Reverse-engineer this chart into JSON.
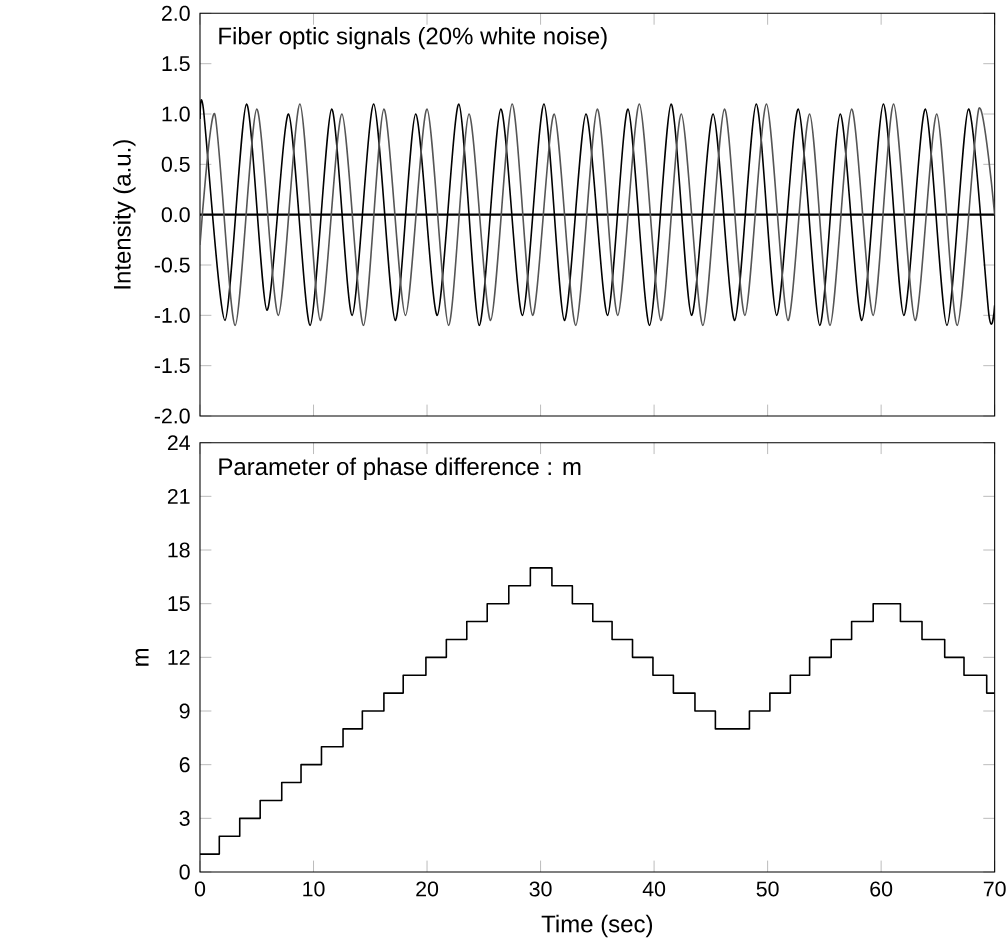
{
  "chart_data": [
    {
      "type": "line",
      "title": "Fiber optic signals (20% white noise)",
      "ylabel": "Intensity (a.u.)",
      "xlim": [
        0,
        70
      ],
      "xticks": [
        {
          "value": 0,
          "label": null
        },
        {
          "value": 10,
          "label": null
        },
        {
          "value": 20,
          "label": null
        },
        {
          "value": 30,
          "label": null
        },
        {
          "value": 40,
          "label": null
        },
        {
          "value": 50,
          "label": null
        },
        {
          "value": 60,
          "label": null
        },
        {
          "value": 70,
          "label": null
        }
      ],
      "ylim": [
        -2,
        2
      ],
      "yticks": [
        {
          "value": -2,
          "label": "-2.0"
        },
        {
          "value": -1.5,
          "label": "-1.5"
        },
        {
          "value": -1,
          "label": "-1.0"
        },
        {
          "value": -0.5,
          "label": "-0.5"
        },
        {
          "value": 0,
          "label": "0.0"
        },
        {
          "value": 0.5,
          "label": "0.5"
        },
        {
          "value": 1,
          "label": "1.0"
        },
        {
          "value": 1.5,
          "label": "1.5"
        },
        {
          "value": 2,
          "label": "2.0"
        }
      ],
      "tick_labels": "y",
      "marker": "none",
      "line_style": "solid",
      "ref_lines": [
        {
          "axis": "y",
          "value": 0,
          "color": "#000000"
        }
      ],
      "series": [
        {
          "color": "#000000",
          "x": [
            0,
            0.3,
            2.2,
            4.1,
            5.9,
            7.8,
            9.7,
            11.6,
            13.4,
            15.3,
            17.2,
            19.0,
            20.9,
            22.8,
            24.6,
            26.5,
            28.4,
            30.3,
            32.1,
            34.0,
            35.9,
            37.7,
            39.6,
            41.5,
            43.3,
            45.2,
            47.1,
            49.0,
            50.8,
            52.7,
            54.6,
            56.4,
            58.3,
            60.2,
            62.0,
            63.9,
            65.8,
            67.7,
            69.5,
            70
          ],
          "values": [
            0.95,
            1.05,
            -1.05,
            1.1,
            -0.95,
            1.0,
            -1.1,
            1.05,
            -1.0,
            1.1,
            -1.05,
            1.0,
            -1.0,
            1.1,
            -1.1,
            1.05,
            -1.0,
            1.1,
            -1.05,
            1.0,
            -1.0,
            1.05,
            -1.1,
            1.1,
            -1.0,
            1.0,
            -1.05,
            1.1,
            -1.0,
            1.05,
            -1.1,
            1.0,
            -1.05,
            1.1,
            -1.0,
            1.05,
            -1.1,
            1.05,
            -1.0,
            -0.9
          ]
        },
        {
          "color": "#555555",
          "x": [
            0,
            1.3,
            3.1,
            5.0,
            6.9,
            8.8,
            10.6,
            12.5,
            14.4,
            16.2,
            18.1,
            20.0,
            21.9,
            23.7,
            25.6,
            27.5,
            29.3,
            31.2,
            33.1,
            35.0,
            36.8,
            38.7,
            40.6,
            42.4,
            44.3,
            46.2,
            48.0,
            49.9,
            51.8,
            53.7,
            55.5,
            57.4,
            59.3,
            61.1,
            63.0,
            64.9,
            66.7,
            68.6,
            70
          ],
          "values": [
            -0.3,
            1.0,
            -1.1,
            1.05,
            -1.0,
            1.1,
            -1.05,
            1.0,
            -1.1,
            1.05,
            -1.0,
            1.05,
            -1.1,
            1.0,
            -1.05,
            1.1,
            -1.0,
            1.0,
            -1.1,
            1.05,
            -1.0,
            1.1,
            -1.05,
            1.0,
            -1.1,
            1.05,
            -1.0,
            1.1,
            -1.05,
            1.0,
            -1.1,
            1.05,
            -1.0,
            1.1,
            -1.05,
            1.0,
            -1.1,
            1.05,
            0.0
          ]
        }
      ]
    },
    {
      "type": "step",
      "title": "Parameter of phase difference : m",
      "xlabel": "Time (sec)",
      "ylabel": "m",
      "xlim": [
        0,
        70
      ],
      "xticks": [
        0,
        10,
        20,
        30,
        40,
        50,
        60,
        70
      ],
      "ylim": [
        0,
        24
      ],
      "yticks": [
        0,
        3,
        6,
        9,
        12,
        15,
        18,
        21,
        24
      ],
      "marker": "none",
      "line_style": "solid",
      "series": [
        {
          "color": "#000000",
          "x": [
            0,
            1.7,
            3.5,
            5.3,
            7.2,
            8.9,
            10.7,
            12.6,
            14.3,
            16.2,
            17.9,
            19.9,
            21.7,
            23.5,
            25.3,
            27.2,
            29.1,
            31,
            32.8,
            34.6,
            36.3,
            38.1,
            39.9,
            41.7,
            43.6,
            45.4,
            48.4,
            50.2,
            52,
            53.7,
            55.6,
            57.4,
            59.3,
            61.7,
            63.6,
            65.6,
            67.3,
            69.3,
            70
          ],
          "values": [
            1,
            2,
            3,
            4,
            5,
            6,
            7,
            8,
            9,
            10,
            11,
            12,
            13,
            14,
            15,
            16,
            17,
            16,
            15,
            14,
            13,
            12,
            11,
            10,
            9,
            8,
            9,
            10,
            11,
            12,
            13,
            14,
            15,
            14,
            13,
            12,
            11,
            10,
            10
          ]
        }
      ]
    }
  ]
}
